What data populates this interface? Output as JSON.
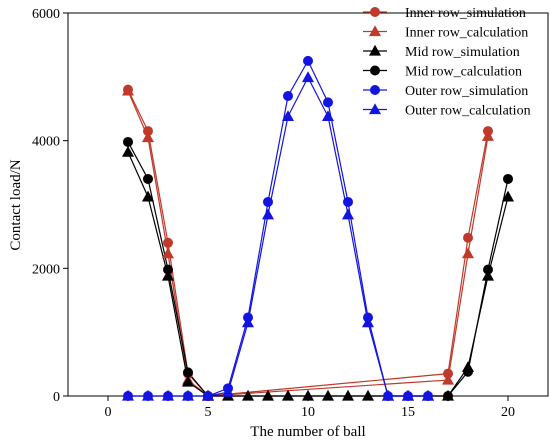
{
  "chart_data": {
    "type": "line",
    "title": "",
    "xlabel": "The number of ball",
    "ylabel": "Contact load/N",
    "xlim": [
      -2,
      22
    ],
    "ylim": [
      0,
      6000
    ],
    "x_ticks": [
      0,
      5,
      10,
      15,
      20
    ],
    "y_ticks": [
      0,
      2000,
      4000,
      6000
    ],
    "legend_position": "top-right",
    "series": [
      {
        "name": "Inner row_simulation",
        "color": "#c0392b",
        "marker": "circle",
        "x": [
          1,
          2,
          3,
          4,
          5,
          17,
          18,
          19
        ],
        "y": [
          4800,
          4150,
          2400,
          350,
          0,
          350,
          2480,
          4150
        ]
      },
      {
        "name": "Inner row_calculation",
        "color": "#c0392b",
        "marker": "triangle",
        "x": [
          1,
          2,
          3,
          4,
          5,
          17,
          18,
          19
        ],
        "y": [
          4780,
          4050,
          2230,
          250,
          0,
          250,
          2230,
          4070
        ]
      },
      {
        "name": "Mid row_simulation",
        "color": "#000000",
        "marker": "triangle",
        "x": [
          1,
          2,
          3,
          4,
          5,
          6,
          7,
          8,
          9,
          10,
          11,
          12,
          13,
          14,
          15,
          16,
          17,
          18,
          19,
          20
        ],
        "y": [
          3820,
          3120,
          1880,
          220,
          0,
          0,
          0,
          0,
          0,
          0,
          0,
          0,
          0,
          0,
          0,
          0,
          0,
          450,
          1880,
          3120
        ]
      },
      {
        "name": "Mid row_calculation",
        "color": "#000000",
        "marker": "circle",
        "x": [
          1,
          2,
          3,
          4,
          5,
          17,
          18,
          19,
          20
        ],
        "y": [
          3980,
          3400,
          1980,
          370,
          0,
          0,
          380,
          1980,
          3400
        ]
      },
      {
        "name": "Outer row_simulation",
        "color": "#1414e0",
        "marker": "circle",
        "x": [
          1,
          2,
          3,
          4,
          5,
          6,
          7,
          8,
          9,
          10,
          11,
          12,
          13,
          14,
          15,
          16
        ],
        "y": [
          0,
          0,
          0,
          0,
          0,
          120,
          1230,
          3040,
          4700,
          5250,
          4600,
          3040,
          1230,
          0,
          0,
          0
        ]
      },
      {
        "name": "Outer row_calculation",
        "color": "#1414e0",
        "marker": "triangle",
        "x": [
          1,
          2,
          3,
          4,
          5,
          6,
          7,
          8,
          9,
          10,
          11,
          12,
          13,
          14,
          15,
          16
        ],
        "y": [
          0,
          0,
          0,
          0,
          0,
          60,
          1150,
          2840,
          4380,
          4990,
          4380,
          2840,
          1150,
          0,
          0,
          0
        ]
      }
    ]
  }
}
